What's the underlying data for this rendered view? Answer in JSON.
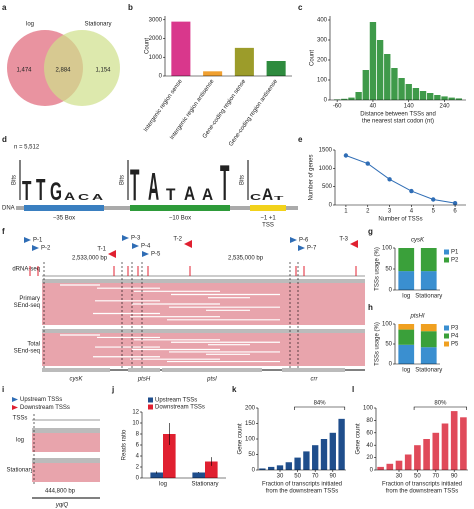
{
  "panel_labels": [
    "a",
    "b",
    "c",
    "d",
    "e",
    "f",
    "g",
    "h",
    "i",
    "j",
    "k",
    "l"
  ],
  "venn": {
    "sets": [
      "log",
      "Stationary"
    ],
    "regions": [
      {
        "value": 1474,
        "label": "1,474"
      },
      {
        "value": 2884,
        "label": "2,884"
      },
      {
        "value": 1154,
        "label": "1,154"
      }
    ]
  },
  "logos": {
    "n": "n = 5,512",
    "ylabel": "Bits",
    "dna": "DNA",
    "boxes": [
      "−35 Box",
      "−10 Box",
      "−1 +1"
    ],
    "tss": "TSS",
    "motifs": [
      [
        {
          "letter": "T",
          "bits": 1.0
        },
        {
          "letter": "T",
          "bits": 1.1
        },
        {
          "letter": "G",
          "bits": 0.9
        },
        {
          "letter": "A",
          "bits": 0.4
        },
        {
          "letter": "C",
          "bits": 0.3
        },
        {
          "letter": "A",
          "bits": 0.3
        }
      ],
      [
        {
          "letter": "T",
          "bits": 1.6
        },
        {
          "letter": "A",
          "bits": 1.4
        },
        {
          "letter": "T",
          "bits": 0.6
        },
        {
          "letter": "A",
          "bits": 0.7
        },
        {
          "letter": "A",
          "bits": 0.6
        },
        {
          "letter": "T",
          "bits": 1.8
        }
      ],
      [
        {
          "letter": "C",
          "bits": 0.3
        },
        {
          "letter": "A",
          "bits": 0.6
        },
        {
          "letter": "T",
          "bits": 0.2
        }
      ]
    ]
  },
  "genome": {
    "promoters": [
      "P-1",
      "P-2",
      "P-3",
      "P-4",
      "P-5",
      "P-6",
      "P-7"
    ],
    "terminators": [
      "T-1",
      "T-2",
      "T-3"
    ],
    "coordinates": [
      "2,533,000 bp",
      "2,535,000 bp"
    ],
    "tracks": [
      [
        "dRNA-seq"
      ],
      [
        "Primary",
        "SEnd-seq"
      ],
      [
        "Total",
        "SEnd-seq"
      ]
    ],
    "genes": [
      "cysK",
      "ptsH",
      "ptsI",
      "crr"
    ]
  },
  "schematic": {
    "legend": [
      "Upstream TSSs",
      "Downstream TSSs"
    ],
    "rows": [
      "TSSs",
      "log",
      "Stationary"
    ],
    "coordinate": "444,800 bp",
    "gene": "yqiQ"
  },
  "chart_data": [
    {
      "type": "bar",
      "ylabel": "Count",
      "categories": [
        "Intergenic region sense",
        "Intergenic region antisense",
        "Gene-coding region sense",
        "Gene-coding region antisense"
      ],
      "values": [
        2900,
        250,
        1500,
        800
      ],
      "colors": [
        "#d9378c",
        "#f0a030",
        "#9c9c2a",
        "#2e8b3e"
      ],
      "ylim": [
        0,
        3200
      ],
      "yticks": [
        0,
        1000,
        2000,
        3000
      ]
    },
    {
      "type": "histogram",
      "ylabel": "Count",
      "xlabel": [
        "Distance between TSSs and",
        "the nearest start codon (nt)"
      ],
      "bins": [
        -70,
        -50,
        -30,
        -10,
        10,
        30,
        50,
        70,
        90,
        110,
        130,
        150,
        170,
        190,
        210,
        230,
        250,
        270,
        290
      ],
      "values": [
        3,
        6,
        12,
        40,
        150,
        390,
        300,
        230,
        160,
        110,
        80,
        60,
        45,
        35,
        25,
        18,
        12,
        8
      ],
      "color": "#3f9a4a",
      "xlim": [
        -80,
        300
      ],
      "xticks": [
        -60,
        40,
        140,
        240
      ],
      "ylim": [
        0,
        420
      ],
      "yticks": [
        0,
        100,
        200,
        300,
        400
      ]
    },
    {
      "type": "line",
      "ylabel": "Number of genes",
      "xlabel": [
        "Number of TSSs"
      ],
      "x": [
        1,
        2,
        3,
        4,
        5,
        6
      ],
      "values": [
        1350,
        1130,
        700,
        380,
        150,
        50
      ],
      "color": "#2f6db5",
      "xlim": [
        0.5,
        6.5
      ],
      "xticks": [
        1,
        2,
        3,
        4,
        5,
        6
      ],
      "ylim": [
        0,
        1500
      ],
      "yticks": [
        0,
        500,
        1000,
        1500
      ]
    },
    {
      "type": "stacked_bar",
      "title": "cysK",
      "ylabel": "TSSs usage (%)",
      "categories": [
        "log",
        "Stationary"
      ],
      "series": [
        {
          "name": "P1",
          "color": "#3a8fd0",
          "values": [
            45,
            45
          ]
        },
        {
          "name": "P2",
          "color": "#3aa03a",
          "values": [
            55,
            55
          ]
        }
      ],
      "ylim": [
        0,
        100
      ],
      "yticks": [
        0,
        50,
        100
      ]
    },
    {
      "type": "stacked_bar",
      "title": "ptsHI",
      "ylabel": "TSSs usage (%)",
      "categories": [
        "log",
        "Stationary"
      ],
      "series": [
        {
          "name": "P3",
          "color": "#3a8fd0",
          "values": [
            48,
            42
          ]
        },
        {
          "name": "P4",
          "color": "#3aa03a",
          "values": [
            38,
            40
          ]
        },
        {
          "name": "P5",
          "color": "#f0a020",
          "values": [
            14,
            18
          ]
        }
      ],
      "ylim": [
        0,
        100
      ],
      "yticks": [
        0,
        50,
        100
      ]
    },
    {
      "type": "grouped_bar",
      "ylabel": "Reads ratio",
      "categories": [
        "log",
        "Stationary"
      ],
      "series": [
        {
          "name": "Upstream TSSs",
          "color": "#1f4e8c",
          "values": [
            1,
            1
          ],
          "errors": [
            0.2,
            0.1
          ]
        },
        {
          "name": "Downstream TSSs",
          "color": "#e02030",
          "values": [
            8,
            3
          ],
          "errors": [
            2,
            0.8
          ]
        }
      ],
      "ylim": [
        0,
        12
      ],
      "yticks": [
        0,
        2,
        4,
        6,
        8,
        10,
        12
      ]
    },
    {
      "type": "bar",
      "ylabel": "Gene count",
      "xlabel": [
        "Fraction of transcripts initiated",
        "from the downstream TSSs"
      ],
      "x": [
        10,
        20,
        30,
        40,
        50,
        60,
        70,
        80,
        90,
        100
      ],
      "values": [
        5,
        10,
        15,
        25,
        40,
        60,
        80,
        100,
        120,
        165
      ],
      "color": "#1f4e8c",
      "xlim": [
        5,
        105
      ],
      "xticks": [
        30,
        50,
        70,
        90
      ],
      "ylim": [
        0,
        200
      ],
      "yticks": [
        0,
        50,
        100,
        150,
        200
      ],
      "annotation": "84%"
    },
    {
      "type": "bar",
      "ylabel": "Gene count",
      "xlabel": [
        "Fraction of transcripts initiated",
        "from the downstream TSSs"
      ],
      "x": [
        10,
        20,
        30,
        40,
        50,
        60,
        70,
        80,
        90,
        100
      ],
      "values": [
        5,
        10,
        15,
        25,
        40,
        50,
        60,
        75,
        95,
        85
      ],
      "color": "#e04a5a",
      "xlim": [
        5,
        105
      ],
      "xticks": [
        30,
        50,
        70,
        90
      ],
      "ylim": [
        0,
        100
      ],
      "yticks": [
        0,
        20,
        40,
        60,
        80,
        100
      ],
      "annotation": "80%"
    }
  ]
}
